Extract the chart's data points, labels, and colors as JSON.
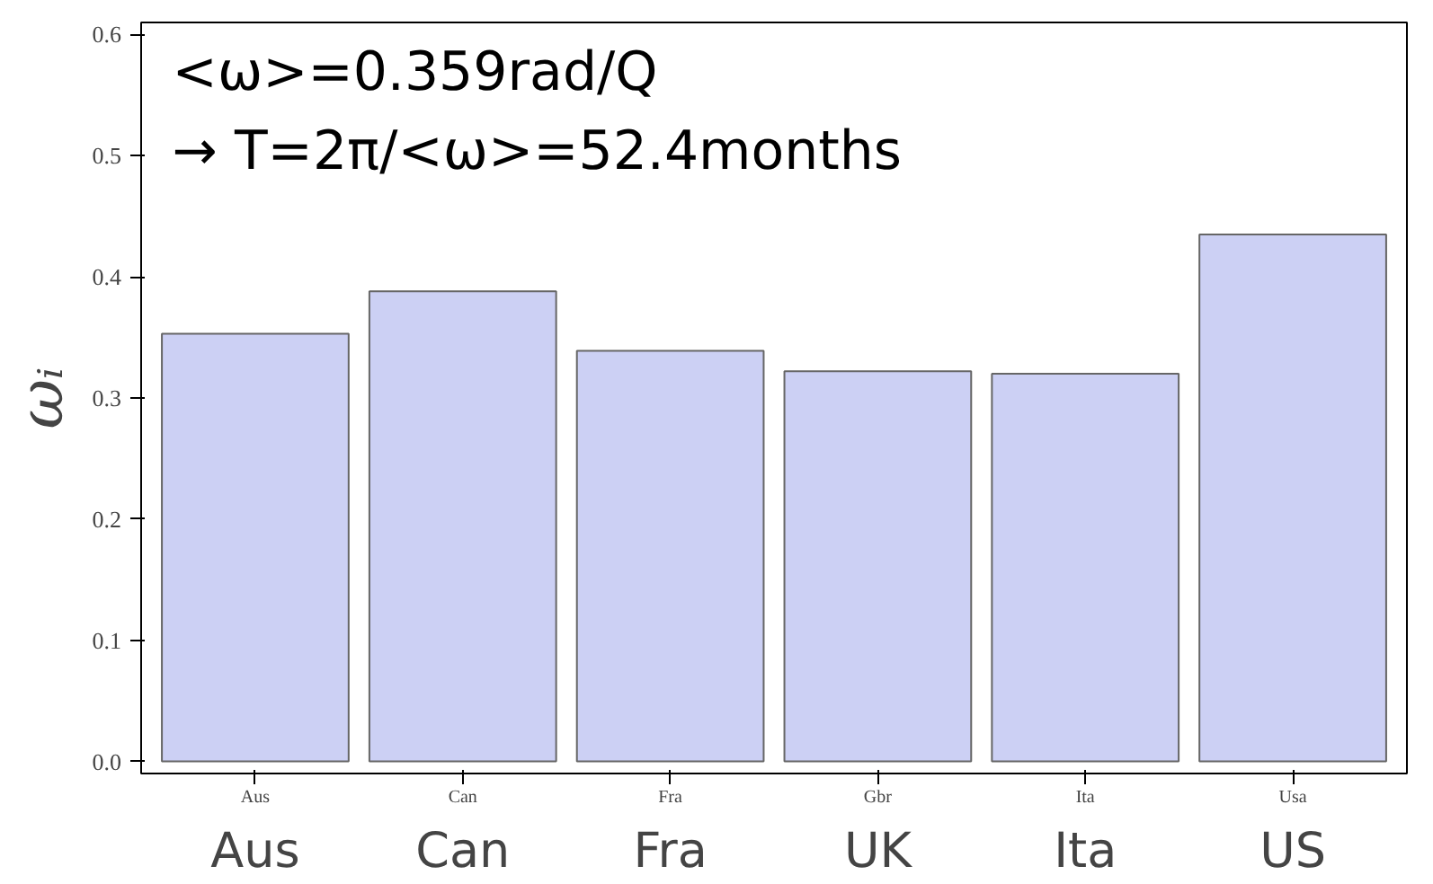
{
  "chart_data": {
    "type": "bar",
    "ylabel": "ωᵢ",
    "categories": [
      "Aus",
      "Can",
      "Fra",
      "UK",
      "Ita",
      "US"
    ],
    "values": [
      0.353,
      0.388,
      0.339,
      0.322,
      0.32,
      0.435
    ],
    "color": "#ccd0f4",
    "ylim": [
      -0.01,
      0.61
    ],
    "yticks": [
      {
        "value": 0,
        "label": "0.0"
      },
      {
        "value": 0.1,
        "label": "0.1"
      },
      {
        "value": 0.2,
        "label": "0.2"
      },
      {
        "value": 0.3,
        "label": "0.3"
      },
      {
        "value": 0.4,
        "label": "0.4"
      },
      {
        "value": 0.5,
        "label": "0.5"
      },
      {
        "value": 0.6,
        "label": "0.6"
      }
    ],
    "grid": false,
    "annotations": [
      "<ω>=0.359rad/Q",
      "→ T=2π/<ω>=52.4months",
      "Aus",
      "Can",
      "Fra",
      "Gbr",
      "Ita",
      "Usa"
    ]
  }
}
